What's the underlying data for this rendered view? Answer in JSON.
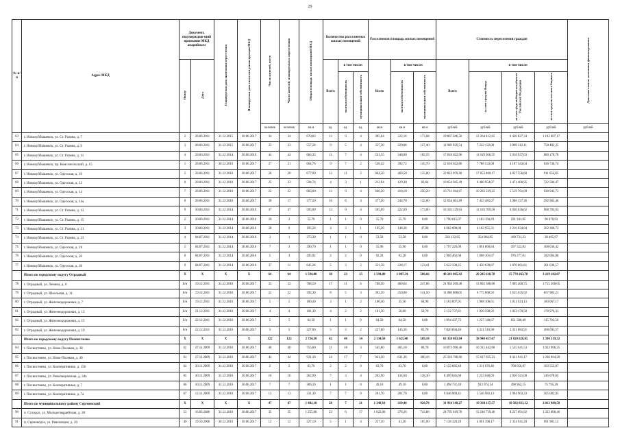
{
  "page": {
    "number": "29"
  },
  "header": {
    "num_label": "№ п/п",
    "addr_label": "Адрес МКД",
    "doc_group": "Документ, подтверждаю-щий признание МКД аварийным",
    "doc_num": "Номер",
    "doc_date": "Дата",
    "plan_end": "Планируемая дата окончания переселения",
    "plan_demolish": "Планируемая дата сноса или реконструкции МКД",
    "residents": "Число жителей, всего",
    "resettle": "Число жителей, планируемых к переселению",
    "area": "Общая площадь жилых помещений МКД",
    "units_group": "Количество расселяемых жилых помещений",
    "sq_group": "Расселяемая площадь жилых помещений",
    "cost_group": "Стоимость переселения граждан",
    "total": "Всего",
    "including": "в том числе:",
    "private": "частная собственность",
    "municipal": "муниципальная собственность",
    "fund": "за счет средств Фонда",
    "region": "за счет средств бюджета субъекта Российской Федерации",
    "local": "за счет средств местного бюджета",
    "extra": "Дополнительные источники финансирования",
    "units_row": [
      "человек",
      "человек",
      "кв.м",
      "ед.",
      "ед.",
      "ед.",
      "кв.м",
      "кв.м",
      "кв.м",
      "рублей",
      "рублей",
      "рублей",
      "рублей",
      "рублей"
    ]
  },
  "rows": [
    {
      "b": 0,
      "c": [
        "63",
        "г. Новокуйбышевск, ул. Ст. Разина, д. 7",
        "2",
        "28.06.2011",
        "31.12.2015",
        "30.06.2017",
        "34",
        "34",
        "670,83",
        "13",
        "9",
        "4",
        "395,84",
        "222,16",
        "173,68",
        "19 867 846,56",
        "12 264 412,05",
        "6 420 827,34",
        "1 182 607,17",
        ""
      ]
    },
    {
      "b": 0,
      "c": [
        "64",
        "г. Новокуйбышевск, ул. Ст. Разина, д. 9",
        "3",
        "28.06.2011",
        "31.12.2015",
        "30.06.2017",
        "23",
        "23",
        "557,28",
        "9",
        "5",
        "4",
        "357,28",
        "229,88",
        "127,40",
        "11 949 926,54",
        "7 222 132,08",
        "3 969 312,11",
        "758 482,35",
        ""
      ]
    },
    {
      "b": 0,
      "c": [
        "65",
        "г. Новокуйбышевск, ул. Ст. Разина, д. 11",
        "4",
        "28.06.2011",
        "31.12.2014",
        "30.06.2016",
        "44",
        "44",
        "666,35",
        "11",
        "7",
        "4",
        "531,35",
        "348,80",
        "182,55",
        "17 818 622,96",
        "11 019 506,55",
        "5 918 937,63",
        "880 178,78",
        ""
      ]
    },
    {
      "b": 0,
      "c": [
        "66",
        "г. Новокуйбышевск, пр. Комсомольский, д. 15",
        "1",
        "28.06.2011",
        "30.12.2016",
        "30.06.2017",
        "27",
        "21",
        "664,76",
        "9",
        "7",
        "2",
        "538,42",
        "392,72",
        "145,70",
        "12 610 622,86",
        "7 786 533,08",
        "4 187 343,04",
        "636 746,74",
        ""
      ]
    },
    {
      "b": 0,
      "c": [
        "67",
        "г. Новокуйбышевск, ул. Одесская, д. 10",
        "5",
        "28.06.2011",
        "31.12.2016",
        "30.06.2017",
        "20",
        "20",
        "677,90",
        "13",
        "11",
        "2",
        "604,50",
        "469,50",
        "135,00",
        "22 822 070,90",
        "17 053 460,17",
        "4 857 556,68",
        "911 054,05",
        ""
      ]
    },
    {
      "b": 0,
      "c": [
        "68",
        "г. Новокуйбышевск, ул. Одесская, д. 12",
        "6",
        "28.06.2011",
        "31.12.2016",
        "30.06.2017",
        "25",
        "23",
        "594,74",
        "4",
        "3",
        "1",
        "212,94",
        "129,30",
        "83,64",
        "10 654 945,49",
        "6 460 954,07",
        "3 471 406,95",
        "722 584,47",
        ""
      ]
    },
    {
      "b": 0,
      "c": [
        "69",
        "г. Новокуйбышевск, ул. Одесская, д. 14",
        "7",
        "28.06.2011",
        "31.12.2016",
        "30.06.2017",
        "22",
        "22",
        "683,00",
        "13",
        "9",
        "4",
        "666,30",
        "416,10",
        "250,20",
        "16 731 944,67",
        "10 283 239,25",
        "5 519 761,69",
        "928 943,73",
        ""
      ]
    },
    {
      "b": 0,
      "c": [
        "70",
        "г. Новокуйбышевск, ул. Одесская, д. 14а",
        "8",
        "28.06.2011",
        "31.12.2016",
        "30.06.2017",
        "30",
        "17",
        "377,50",
        "10",
        "6",
        "4",
        "377,50",
        "244,70",
        "132,80",
        "12 034 601,89",
        "7 455 481,07",
        "3 986 137,36",
        "592 983,46",
        ""
      ]
    },
    {
      "b": 0,
      "c": [
        "71",
        "г. Новокуйбышевск, ул. Ст. Разина, д. 13",
        "9",
        "30.06.2011",
        "31.12.2014",
        "30.06.2016",
        "37",
        "37",
        "595,09",
        "13",
        "9",
        "4",
        "595,09",
        "422,09",
        "173,00",
        "18 103 129,63",
        "11 163 709,38",
        "6 030 636,62",
        "908 783,63",
        ""
      ]
    },
    {
      "b": 0,
      "c": [
        "72",
        "г. Новокуйбышевск, ул. Ст. Разина, д. 15",
        "2",
        "30.06.2011",
        "31.12.2014",
        "30.06.2016",
        "20",
        "3",
        "55,70",
        "1",
        "1",
        "0",
        "55,70",
        "55,70",
        "0,00",
        "1 790 615,07",
        "1 103 194,29",
        "591 341,85",
        "96 078,93",
        ""
      ]
    },
    {
      "b": 0,
      "c": [
        "73",
        "г. Новокуйбышевск, ул. Ст. Разина, д. 21",
        "3",
        "30.06.2011",
        "31.12.2014",
        "30.06.2016",
        "28",
        "6",
        "195,28",
        "4",
        "3",
        "1",
        "195,28",
        "148,28",
        "47,00",
        "6 682 090,08",
        "4 102 955,31",
        "2 216 834,04",
        "362 300,73",
        ""
      ]
    },
    {
      "b": 0,
      "c": [
        "74",
        "г. Новокуйбышевск, ул. Ст. Разина, д. 23",
        "4",
        "04.07.2011",
        "31.12.2014",
        "30.06.2016",
        "2",
        "1",
        "375,39",
        "1",
        "1",
        "0",
        "53,58",
        "53,58",
        "0,00",
        "583 132,05",
        "354 904,85",
        "189 731,23",
        "38 495,97",
        ""
      ]
    },
    {
      "b": 0,
      "c": [
        "75",
        "г. Новокуйбышевск, ул. Одесская, д. 18",
        "5",
        "04.07.2011",
        "31.12.2014",
        "30.06.2016",
        "7",
        "3",
        "390,70",
        "1",
        "1",
        "0",
        "55,90",
        "55,90",
        "0,00",
        "1 797 226,09",
        "1 091 866,84",
        "597 322,83",
        "108 036,42",
        ""
      ]
    },
    {
      "b": 0,
      "c": [
        "76",
        "г. Новокуйбышевск, ул. Одесская, д. 20",
        "6",
        "04.07.2011",
        "31.12.2014",
        "30.06.2016",
        "5",
        "3",
        "495,92",
        "2",
        "2",
        "0",
        "92,28",
        "92,28",
        "0,00",
        "2 966 462,68",
        "1 808 101,67",
        "976 277,01",
        "182 084,00",
        ""
      ]
    },
    {
      "b": 0,
      "c": [
        "77",
        "г. Новокуйбышевск, ул. Одесская, д. 26",
        "9",
        "04.07.2011",
        "31.12.2014",
        "30.06.2016",
        "37",
        "11",
        "645,28",
        "5",
        "3",
        "2",
        "351,58",
        "228,17",
        "123,41",
        "5 622 338,25",
        "3 450 639,87",
        "1 870 661,81",
        "301 036,57",
        ""
      ]
    },
    {
      "b": 1,
      "c": [
        "",
        "Итого по городскому округу  Отрадный",
        "X",
        "X",
        "X",
        "X",
        "64",
        "64",
        "1 594,00",
        "38",
        "23",
        "15",
        "1 594,00",
        "1 007,34",
        "586,66",
        "48 243 065,43",
        "29 245 618,78",
        "15 778 263,78",
        "3 219 182,87",
        ""
      ]
    },
    {
      "b": 0,
      "c": [
        "78",
        "г. Отрадный, ул. Ленина, д. 6",
        "б/н",
        "19.12.2011",
        "31.12.2016",
        "30.06.2017",
        "23",
        "23",
        "708,50",
        "17",
        "11",
        "6",
        "708,50",
        "460,64",
        "247,86",
        "21 903 209,48",
        "13 092 388,68",
        "7 095 460,75",
        "1 715 360,05",
        ""
      ]
    },
    {
      "b": 0,
      "c": [
        "79",
        "г. Отрадный, ул. Школьная, д. 31",
        "б/н",
        "19.12.2011",
        "31.12.2016",
        "30.06.2017",
        "22",
        "22",
        "392,30",
        "8",
        "5",
        "3",
        "392,30",
        "250,80",
        "141,50",
        "11 088 888,05",
        "6 775 868,92",
        "3 655 035,92",
        "657 983,21",
        ""
      ]
    },
    {
      "b": 0,
      "c": [
        "80",
        "г. Отрадный, ул. Железнодорожная, д. 7",
        "б/н",
        "19.12.2011",
        "31.12.2016",
        "30.06.2017",
        "5",
        "5",
        "100,40",
        "3",
        "1",
        "2",
        "100,40",
        "35,50",
        "64,90",
        "3 103 097,91",
        "1 908 106,61",
        "1 011 924,13",
        "183 067,17",
        ""
      ]
    },
    {
      "b": 0,
      "c": [
        "81",
        "г. Отрадный, ул. Железнодорожная, д. 13",
        "б/н",
        "21.12.2011",
        "31.12.2016",
        "30.06.2017",
        "4",
        "4",
        "101,30",
        "4",
        "2",
        "2",
        "101,30",
        "50,60",
        "50,70",
        "3 132 737,81",
        "1 920 590,92",
        "1 033 170,58",
        "178 976,31",
        ""
      ]
    },
    {
      "b": 0,
      "c": [
        "82",
        "г. Отрадный, ул. Железнодорожная, д. 15",
        "б/н",
        "22.12.2011",
        "31.12.2016",
        "30.06.2017",
        "5",
        "5",
        "64,50",
        "1",
        "1",
        "0",
        "64,50",
        "64,50",
        "0,00",
        "1 994 437,72",
        "1 227 146,67",
        "651 588,49",
        "115 702,56",
        ""
      ]
    },
    {
      "b": 0,
      "c": [
        "83",
        "г. Отрадный, ул. Железнодорожная, д. 19",
        "б/н",
        "22.12.2011",
        "31.12.2016",
        "30.06.2017",
        "5",
        "5",
        "227,00",
        "5",
        "3",
        "2",
        "227,00",
        "145,30",
        "81,70",
        "7 020 694,46",
        "4 321 516,98",
        "2 331 083,91",
        "368 093,57",
        ""
      ]
    },
    {
      "b": 1,
      "c": [
        "",
        "Итого по городскому округу Похвистнево",
        "X",
        "X",
        "X",
        "X",
        "122",
        "122",
        "2 734,30",
        "62",
        "48",
        "14",
        "2 134,50",
        "1 625,40",
        "509,10",
        "63 358 803,04",
        "38 948 457,67",
        "21 020 026,05",
        "3 390 319,32",
        ""
      ]
    },
    {
      "b": 0,
      "c": [
        "84",
        "г. Похвистнево, ул. Ново-Полевая, д. 38",
        "62",
        "27.11.2009",
        "31.12.2016",
        "30.06.2017",
        "40",
        "40",
        "755,80",
        "21",
        "18",
        "3",
        "545,80",
        "465,10",
        "80,70",
        "16 873 990,46",
        "10 315 442,68",
        "5 535 641,53",
        "1 022 906,25",
        ""
      ]
    },
    {
      "b": 0,
      "c": [
        "85",
        "г. Похвистнево, ул. Ново-Полевая, д. 40",
        "63",
        "27.11.2009",
        "31.12.2016",
        "30.06.2017",
        "44",
        "44",
        "931,30",
        "24",
        "17",
        "7",
        "931,30",
        "631,20",
        "300,10",
        "25 316 780,60",
        "15 617 935,23",
        "8 431 941,17",
        "1 266 904,20",
        ""
      ]
    },
    {
      "b": 0,
      "c": [
        "86",
        "г. Похвистнево, ул. Кооперативная, д. 156",
        "64",
        "30.11.2009",
        "31.12.2016",
        "30.06.2017",
        "2",
        "2",
        "63,70",
        "2",
        "2",
        "0",
        "63,70",
        "63,70",
        "0,00",
        "2 122 685,40",
        "1 311 076,46",
        "708 056,87",
        "103 552,07",
        ""
      ]
    },
    {
      "b": 0,
      "c": [
        "87",
        "г. Похвистнево, ул. Революционная, д. 34а",
        "65",
        "30.11.2009",
        "31.12.2016",
        "30.06.2017",
        "16",
        "16",
        "262,90",
        "7",
        "3",
        "4",
        "262,90",
        "134,60",
        "128,30",
        "8 499 645,68",
        "5 233 046,03",
        "2 850 521,00",
        "416 078,65",
        ""
      ]
    },
    {
      "b": 0,
      "c": [
        "88",
        "г. Похвистнево, ул. Кооперативная, д. 7",
        "66",
        "30.11.2009",
        "31.12.2016",
        "30.06.2017",
        "7",
        "7",
        "389,30",
        "1",
        "1",
        "0",
        "49,10",
        "49,10",
        "0,00",
        "1 498 731,49",
        "923 974,14",
        "498 962,15",
        "75 795,20",
        ""
      ]
    },
    {
      "b": 0,
      "c": [
        "89",
        "г. Похвистнево, ул. Кооперативная, д. 7а",
        "67",
        "12.11.2009",
        "31.12.2016",
        "30.06.2017",
        "13",
        "13",
        "331,30",
        "7",
        "7",
        "0",
        "281,70",
        "281,70",
        "0,00",
        "9 046 969,41",
        "5 546 983,13",
        "2 994 903,33",
        "505 082,95",
        ""
      ]
    },
    {
      "b": 1,
      "c": [
        "",
        "Итого по муниципальному району Сергиевский",
        "X",
        "X",
        "X",
        "X",
        "47",
        "47",
        "1 482,10",
        "28",
        "7",
        "21",
        "1 249,10",
        "319,40",
        "929,70",
        "31 934 140,27",
        "19 338 117,57",
        "10 582 033,12",
        "2 013 989,58",
        ""
      ]
    },
    {
      "b": 0,
      "c": [
        "90",
        "п. Суходол, ул. Молодогвардейская, д. 28",
        "53",
        "16.03.2006",
        "31.12.2016",
        "30.06.2017",
        "35",
        "35",
        "1 255,00",
        "23",
        "6",
        "17",
        "1 022,00",
        "278,20",
        "743,80",
        "24 795 819,78",
        "15 246 719,40",
        "8 227 091,92",
        "1 322 008,46",
        ""
      ]
    },
    {
      "b": 0,
      "c": [
        "91",
        "п. Серноводск, ул. Революции, д. 20",
        "49",
        "19.10.2006",
        "30.12.2016",
        "30.06.2017",
        "12",
        "12",
        "227,10",
        "5",
        "1",
        "4",
        "227,10",
        "41,20",
        "185,90",
        "7 138 320,49",
        "4 091 398,17",
        "2 354 941,20",
        "691 981,12",
        ""
      ]
    }
  ]
}
